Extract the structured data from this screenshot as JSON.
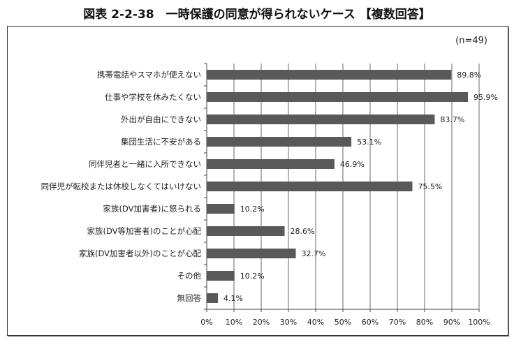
{
  "chart_data": {
    "type": "bar",
    "orientation": "horizontal",
    "title": "図表 2-2-38　一時保護の同意が得られないケース 【複数回答】",
    "note": "(n=49)",
    "categories": [
      "携帯電話やスマホが使えない",
      "仕事や学校を休みたくない",
      "外出が自由にできない",
      "集団生活に不安がある",
      "同伴児者と一緒に入所できない",
      "同伴児が転校または休校しなくてはいけない",
      "家族(DV加害者)に怒られる",
      "家族(DV等加害者)のことが心配",
      "家族(DV加害者以外)のことが心配",
      "その他",
      "無回答"
    ],
    "values": [
      89.8,
      95.9,
      83.7,
      53.1,
      46.9,
      75.5,
      10.2,
      28.6,
      32.7,
      10.2,
      4.1
    ],
    "value_labels": [
      "89.8%",
      "95.9%",
      "83.7%",
      "53.1%",
      "46.9%",
      "75.5%",
      "10.2%",
      "28.6%",
      "32.7%",
      "10.2%",
      "4.1%"
    ],
    "xlim": [
      0,
      100
    ],
    "x_ticks": [
      "0%",
      "10%",
      "20%",
      "30%",
      "40%",
      "50%",
      "60%",
      "70%",
      "80%",
      "90%",
      "100%"
    ],
    "grid": "vertical",
    "bar_color": "#595959",
    "xlabel": "",
    "ylabel": ""
  }
}
